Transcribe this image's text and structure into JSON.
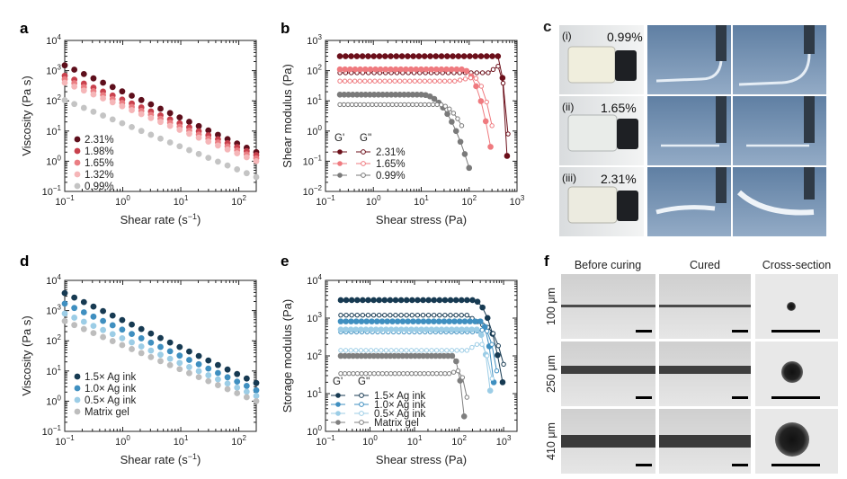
{
  "panel_labels": {
    "a": "a",
    "b": "b",
    "c": "c",
    "d": "d",
    "e": "e",
    "f": "f"
  },
  "chart_data": [
    {
      "panel": "a",
      "type": "scatter",
      "xscale": "log",
      "yscale": "log",
      "xlim": [
        0.1,
        200
      ],
      "ylim": [
        0.1,
        10000
      ],
      "xlabel_main": "Shear rate (s",
      "xlabel_sup": "−1",
      "xlabel_tail": ")",
      "ylabel": "Viscosity (Pa s)",
      "xticks": [
        {
          "v": 0.1,
          "m": "10",
          "e": "−1"
        },
        {
          "v": 1,
          "m": "10",
          "e": "0"
        },
        {
          "v": 10,
          "m": "10",
          "e": "1"
        },
        {
          "v": 100,
          "m": "10",
          "e": "2"
        }
      ],
      "yticks": [
        {
          "v": 0.1,
          "m": "10",
          "e": "−1"
        },
        {
          "v": 1,
          "m": "10",
          "e": "0"
        },
        {
          "v": 10,
          "m": "10",
          "e": "1"
        },
        {
          "v": 100,
          "m": "10",
          "e": "2"
        },
        {
          "v": 1000,
          "m": "10",
          "e": "3"
        },
        {
          "v": 10000,
          "m": "10",
          "e": "4"
        }
      ],
      "series": [
        {
          "name": "2.31%",
          "color": "#5e0f1c",
          "x0": 0.1,
          "x1": 200,
          "y0": 1500,
          "y1": 2.0
        },
        {
          "name": "1.98%",
          "color": "#c8414d",
          "x0": 0.1,
          "x1": 200,
          "y0": 680,
          "y1": 1.6
        },
        {
          "name": "1.65%",
          "color": "#ea7e83",
          "x0": 0.1,
          "x1": 200,
          "y0": 520,
          "y1": 1.25
        },
        {
          "name": "1.32%",
          "color": "#f5b6b8",
          "x0": 0.1,
          "x1": 200,
          "y0": 400,
          "y1": 1.0
        },
        {
          "name": "0.99%",
          "color": "#c4c4c4",
          "x0": 0.1,
          "x1": 200,
          "y0": 105,
          "y1": 0.3
        }
      ]
    },
    {
      "panel": "b",
      "type": "line",
      "xscale": "log",
      "yscale": "log",
      "xlim": [
        0.1,
        1000
      ],
      "ylim": [
        0.01,
        1000
      ],
      "xlabel": "Shear stress (Pa)",
      "ylabel": "Shear modulus (Pa)",
      "xticks": [
        {
          "v": 0.1,
          "m": "10",
          "e": "−1"
        },
        {
          "v": 1,
          "m": "10",
          "e": "0"
        },
        {
          "v": 10,
          "m": "10",
          "e": "1"
        },
        {
          "v": 100,
          "m": "10",
          "e": "2"
        },
        {
          "v": 1000,
          "m": "10",
          "e": "3"
        }
      ],
      "yticks": [
        {
          "v": 0.01,
          "m": "10",
          "e": "−2"
        },
        {
          "v": 0.1,
          "m": "10",
          "e": "−1"
        },
        {
          "v": 1,
          "m": "10",
          "e": "0"
        },
        {
          "v": 10,
          "m": "10",
          "e": "1"
        },
        {
          "v": 100,
          "m": "10",
          "e": "2"
        },
        {
          "v": 1000,
          "m": "10",
          "e": "3"
        }
      ],
      "legend_header": [
        "G'",
        "G''"
      ],
      "series": [
        {
          "name": "2.31%",
          "color": "#6b0f1a",
          "gp": {
            "plateau": 300,
            "xs": 400,
            "ye": 0.15,
            "xe": 620
          },
          "gpp": {
            "plateau": 85,
            "xs": 250,
            "peak": 140,
            "ye": 0.8,
            "xe": 650
          }
        },
        {
          "name": "1.65%",
          "color": "#ef7a7f",
          "gp": {
            "plateau": 110,
            "xs": 70,
            "ye": 0.3,
            "xe": 280
          },
          "gpp": {
            "plateau": 45,
            "xs": 50,
            "peak": 60,
            "ye": 1.5,
            "xe": 300
          }
        },
        {
          "name": "0.99%",
          "color": "#7a7a7a",
          "gp": {
            "plateau": 16,
            "xs": 10,
            "ye": 0.06,
            "xe": 100
          },
          "gpp": {
            "plateau": 7.5,
            "xs": 8,
            "peak": 7.5,
            "ye": 1.5,
            "xe": 70
          }
        }
      ]
    },
    {
      "panel": "d",
      "type": "scatter",
      "xscale": "log",
      "yscale": "log",
      "xlim": [
        0.1,
        200
      ],
      "ylim": [
        0.1,
        10000
      ],
      "xlabel_main": "Shear rate (s",
      "xlabel_sup": "−1",
      "xlabel_tail": ")",
      "ylabel": "Viscosity (Pa s)",
      "xticks": [
        {
          "v": 0.1,
          "m": "10",
          "e": "−1"
        },
        {
          "v": 1,
          "m": "10",
          "e": "0"
        },
        {
          "v": 10,
          "m": "10",
          "e": "1"
        },
        {
          "v": 100,
          "m": "10",
          "e": "2"
        }
      ],
      "yticks": [
        {
          "v": 0.1,
          "m": "10",
          "e": "−1"
        },
        {
          "v": 1,
          "m": "10",
          "e": "0"
        },
        {
          "v": 10,
          "m": "10",
          "e": "1"
        },
        {
          "v": 100,
          "m": "10",
          "e": "2"
        },
        {
          "v": 1000,
          "m": "10",
          "e": "3"
        },
        {
          "v": 10000,
          "m": "10",
          "e": "4"
        }
      ],
      "series": [
        {
          "name": "1.5× Ag ink",
          "color": "#173a52",
          "x0": 0.1,
          "x1": 200,
          "y0": 3800,
          "y1": 4.0
        },
        {
          "name": "1.0× Ag ink",
          "color": "#3f8fc0",
          "x0": 0.1,
          "x1": 200,
          "y0": 1700,
          "y1": 2.3
        },
        {
          "name": "0.5× Ag ink",
          "color": "#9ccde6",
          "x0": 0.1,
          "x1": 200,
          "y0": 800,
          "y1": 1.5
        },
        {
          "name": "Matrix gel",
          "color": "#bdbdbd",
          "x0": 0.1,
          "x1": 200,
          "y0": 450,
          "y1": 1.0
        }
      ]
    },
    {
      "panel": "e",
      "type": "line",
      "xscale": "log",
      "yscale": "log",
      "xlim": [
        0.1,
        2000
      ],
      "ylim": [
        1,
        10000
      ],
      "xlabel": "Shear stress (Pa)",
      "ylabel": "Storage modulus (Pa)",
      "xticks": [
        {
          "v": 0.1,
          "m": "10",
          "e": "−1"
        },
        {
          "v": 1,
          "m": "10",
          "e": "0"
        },
        {
          "v": 10,
          "m": "10",
          "e": "1"
        },
        {
          "v": 100,
          "m": "10",
          "e": "2"
        },
        {
          "v": 1000,
          "m": "10",
          "e": "3"
        }
      ],
      "yticks": [
        {
          "v": 1,
          "m": "10",
          "e": "0"
        },
        {
          "v": 10,
          "m": "10",
          "e": "1"
        },
        {
          "v": 100,
          "m": "10",
          "e": "2"
        },
        {
          "v": 1000,
          "m": "10",
          "e": "3"
        },
        {
          "v": 10000,
          "m": "10",
          "e": "4"
        }
      ],
      "legend_header": [
        "G'",
        "G''"
      ],
      "series": [
        {
          "name": "1.5× Ag ink",
          "color": "#173a52",
          "gp": {
            "plateau": 3000,
            "xs": 200,
            "ye": 20,
            "xe": 950
          },
          "gpp": {
            "plateau": 1200,
            "xs": 150,
            "peak": 600,
            "ye": 60,
            "xe": 1000
          }
        },
        {
          "name": "1.0× Ag ink",
          "color": "#3f8fc0",
          "gp": {
            "plateau": 820,
            "xs": 300,
            "ye": 20,
            "xe": 600
          },
          "gpp": {
            "plateau": 430,
            "xs": 200,
            "peak": 500,
            "ye": 40,
            "xe": 700
          }
        },
        {
          "name": "0.5× Ag ink",
          "color": "#9ccde6",
          "gp": {
            "plateau": 500,
            "xs": 250,
            "ye": 12,
            "xe": 500
          },
          "gpp": {
            "plateau": 140,
            "xs": 150,
            "peak": 220,
            "ye": 25,
            "xe": 550
          }
        },
        {
          "name": "Matrix gel",
          "color": "#7f7f7f",
          "gp": {
            "plateau": 100,
            "xs": 70,
            "ye": 2.5,
            "xe": 130
          },
          "gpp": {
            "plateau": 34,
            "xs": 60,
            "peak": 40,
            "ye": 8,
            "xe": 150
          }
        }
      ]
    }
  ],
  "photos_c": {
    "rows": [
      {
        "numeral": "(i)",
        "pct": "0.99%"
      },
      {
        "numeral": "(ii)",
        "pct": "1.65%"
      },
      {
        "numeral": "(iii)",
        "pct": "2.31%"
      }
    ]
  },
  "photos_f": {
    "col_headers": [
      "Before curing",
      "Cured",
      "Cross-section"
    ],
    "row_labels": [
      "100 μm",
      "250 μm",
      "410 μm"
    ]
  },
  "colors": {
    "panel_c_bg": "#6d8cab",
    "vial_bg": "#2a2d33"
  }
}
